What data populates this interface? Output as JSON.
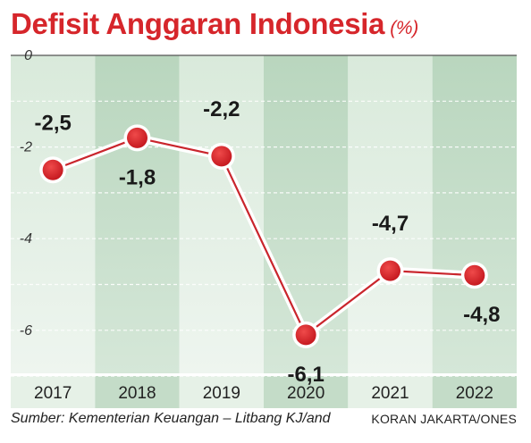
{
  "header": {
    "title": "Defisit Anggaran Indonesia",
    "unit": "(%)"
  },
  "footer": {
    "source": "Sumber: Kementerian Keuangan – Litbang KJ/and",
    "credit": "KORAN JAKARTA/ONES"
  },
  "chart_data": {
    "type": "line",
    "title": "Defisit Anggaran Indonesia",
    "categories": [
      "2017",
      "2018",
      "2019",
      "2020",
      "2021",
      "2022"
    ],
    "series": [
      {
        "values": [
          -2.5,
          -1.8,
          -2.2,
          -6.1,
          -4.7,
          -4.8
        ]
      }
    ],
    "value_labels": [
      "-2,5",
      "-1,8",
      "-2,2",
      "-6,1",
      "-4,7",
      "-4,8"
    ],
    "label_positions": [
      "above",
      "below",
      "above",
      "below",
      "above",
      "below"
    ],
    "yticks": [
      0,
      -2,
      -4,
      -6
    ],
    "ytick_labels": [
      "0",
      "-2",
      "-4",
      "-6"
    ],
    "ylim": [
      -7,
      0
    ],
    "grid": true,
    "colors": {
      "line": "#c9252c",
      "marker": "#d6262b",
      "band_dark": "#c4dcc8",
      "band_light": "#e6f1e7",
      "title": "#d6262b"
    }
  }
}
